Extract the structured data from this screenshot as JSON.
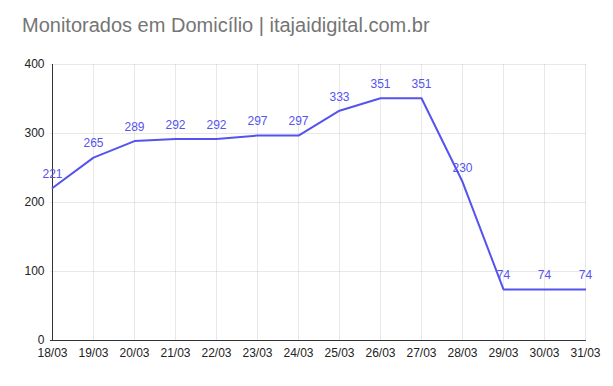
{
  "chart_data": {
    "type": "line",
    "title": "Monitorados em Domicílio | itajaidigital.com.br",
    "categories": [
      "18/03",
      "19/03",
      "20/03",
      "21/03",
      "22/03",
      "23/03",
      "24/03",
      "25/03",
      "26/03",
      "27/03",
      "28/03",
      "29/03",
      "30/03",
      "31/03"
    ],
    "values": [
      221,
      265,
      289,
      292,
      292,
      297,
      297,
      333,
      351,
      351,
      230,
      74,
      74,
      74
    ],
    "color": "#5553ee",
    "ylim": [
      0,
      400
    ],
    "yticks": [
      0,
      100,
      200,
      300,
      400
    ],
    "grid": true,
    "data_labels": true
  }
}
